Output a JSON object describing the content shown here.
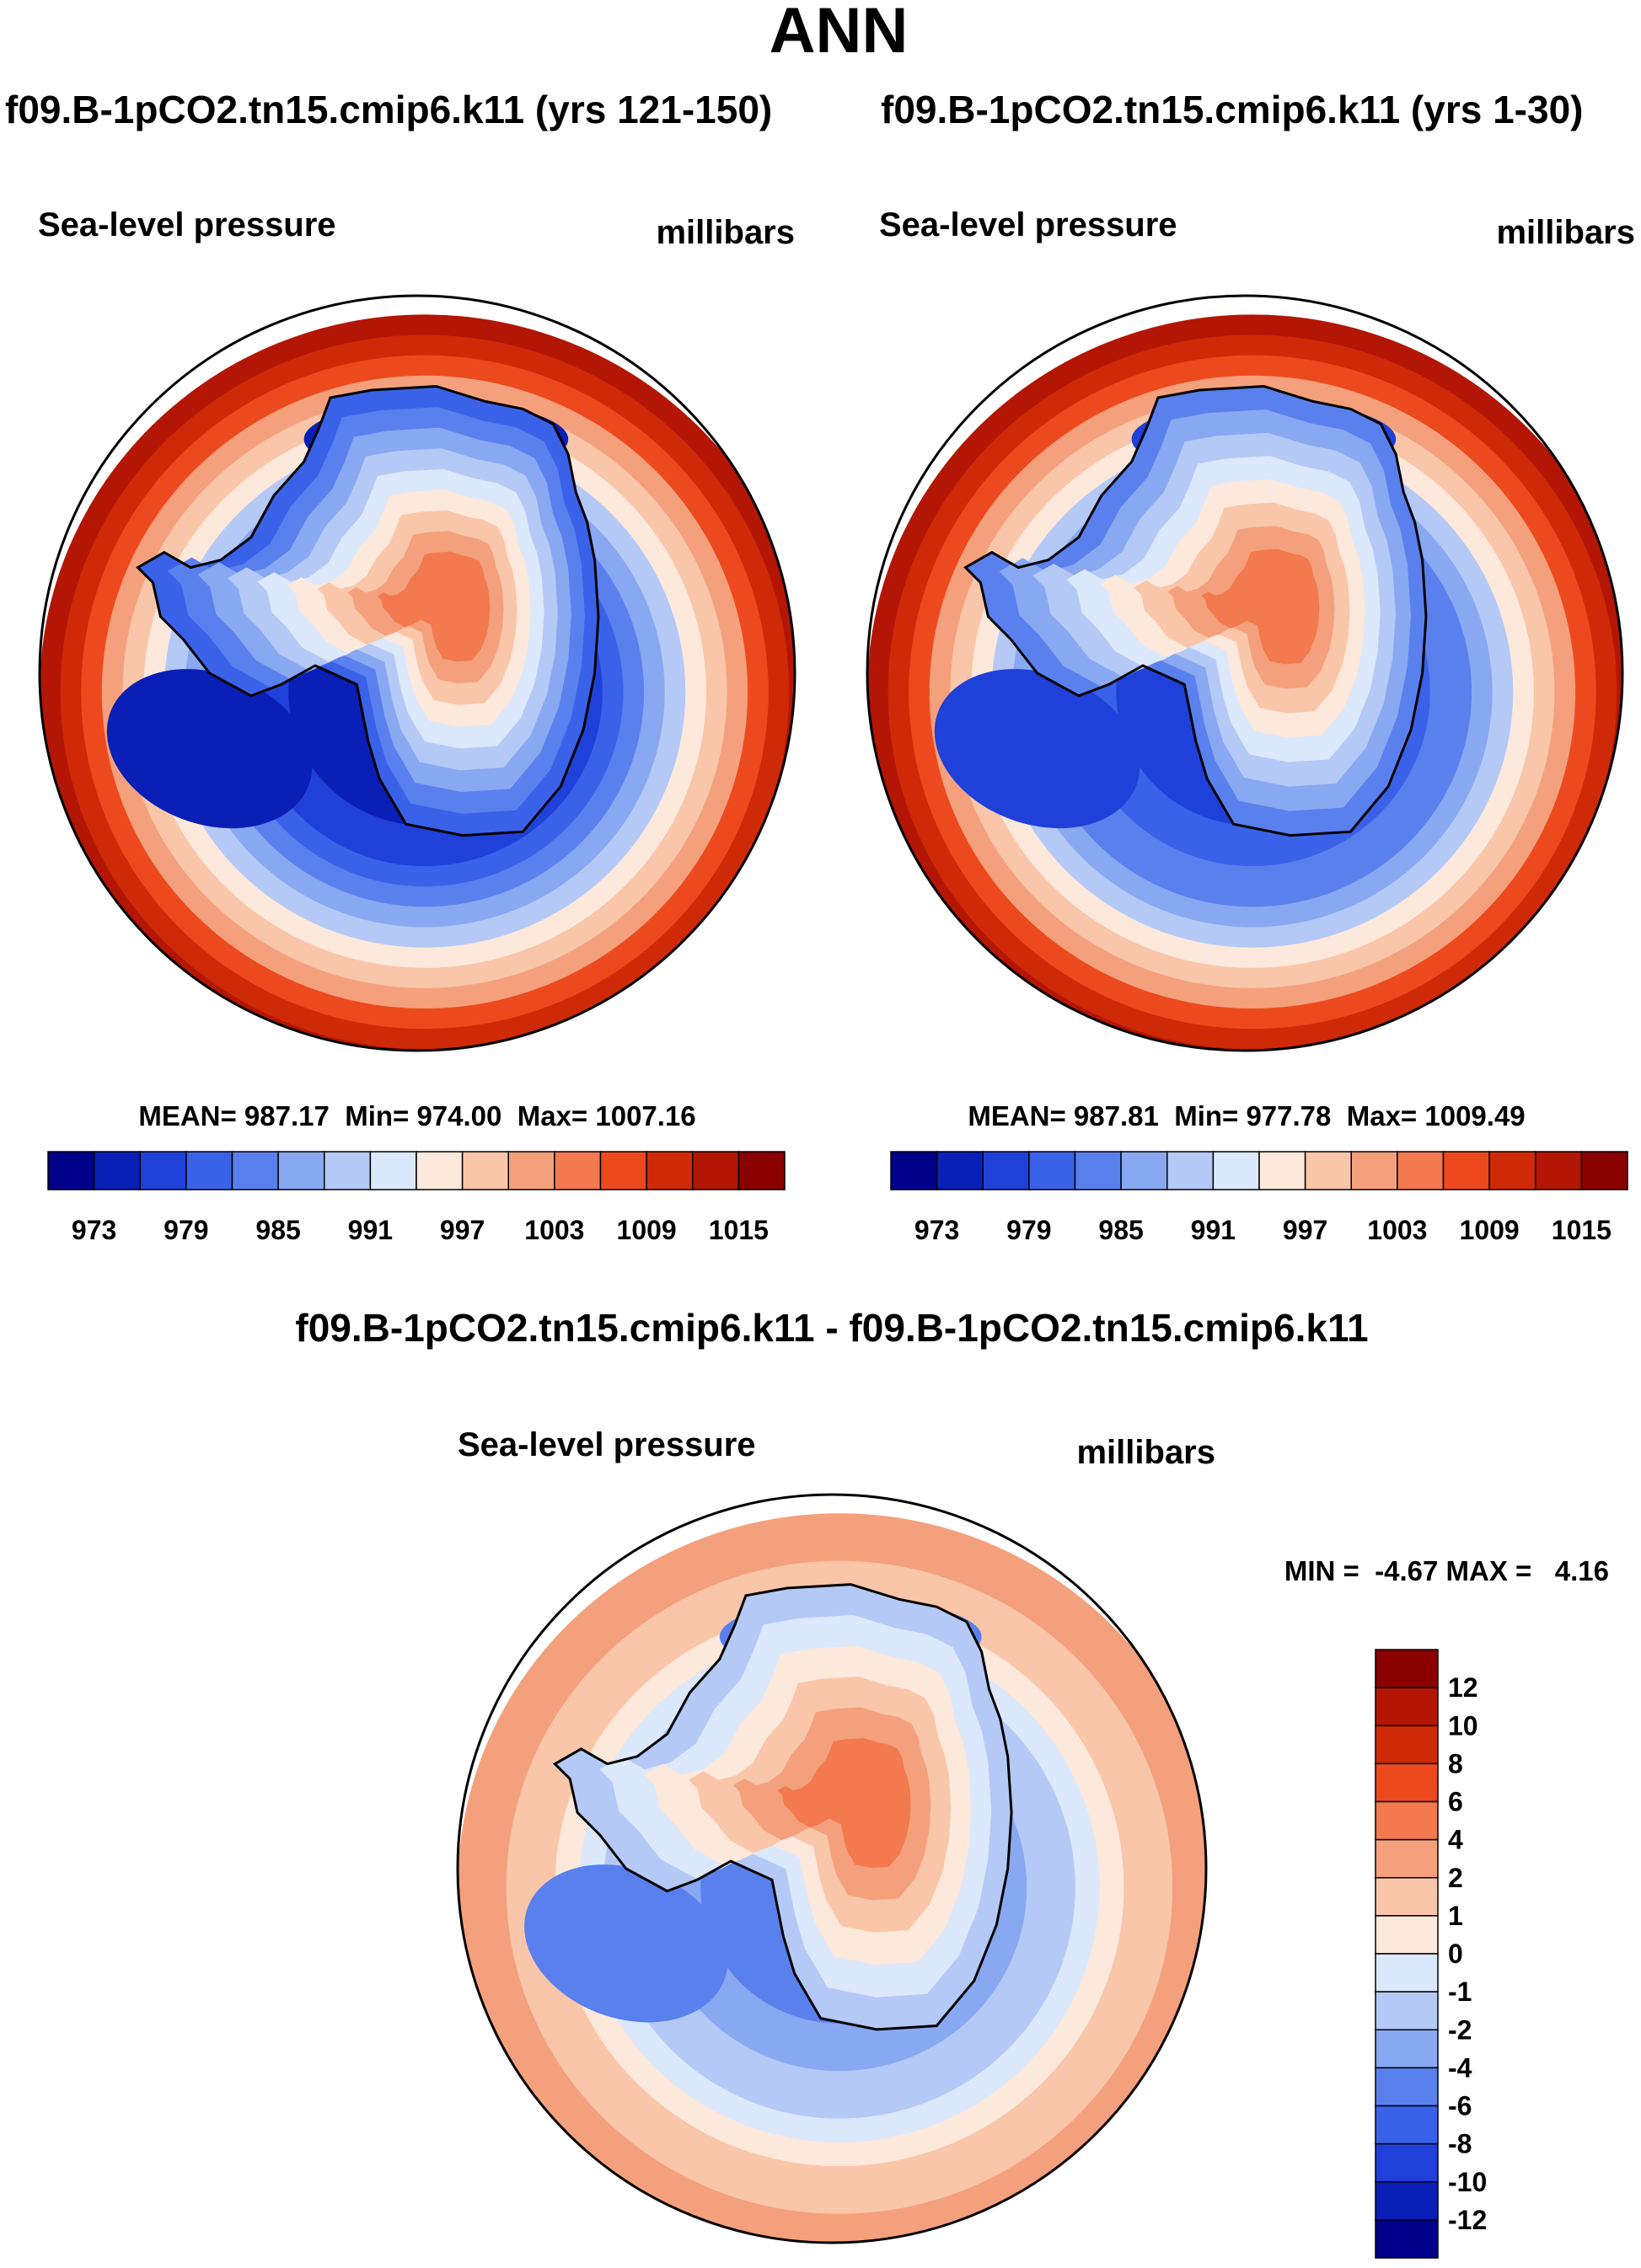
{
  "figure": {
    "season": "ANN",
    "diff_title": "f09.B-1pCO2.tn15.cmip6.k11 - f09.B-1pCO2.tn15.cmip6.k11"
  },
  "colors": {
    "abs_levels": [
      "#00008b",
      "#0a1fb5",
      "#1f40d9",
      "#3a62e8",
      "#5a80ee",
      "#89a8f2",
      "#b5c9f6",
      "#dce8fb",
      "#fde8dc",
      "#f9c6aa",
      "#f5a07c",
      "#f27a4e",
      "#ec4a1e",
      "#cf2a07",
      "#b31605",
      "#8b0000"
    ],
    "diff_levels": [
      "#00008b",
      "#0a1fb5",
      "#1f40d9",
      "#3a62e8",
      "#5a80ee",
      "#89a8f2",
      "#b5c9f6",
      "#dce8fb",
      "#fde8dc",
      "#f9c6aa",
      "#f5a07c",
      "#f27a4e",
      "#ec4a1e",
      "#cf2a07",
      "#b31605",
      "#8b0000"
    ],
    "coast": "#000000"
  },
  "panels": [
    {
      "id": "top-left",
      "case": "f09.B-1pCO2.tn15.cmip6.k11 (yrs 121-150)",
      "variable": "Sea-level pressure",
      "units": "millibars",
      "stats": "MEAN= 987.17  Min= 974.00  Max= 1007.16"
    },
    {
      "id": "top-right",
      "case": "f09.B-1pCO2.tn15.cmip6.k11 (yrs 1-30)",
      "variable": "Sea-level pressure",
      "units": "millibars",
      "stats": "MEAN= 987.81  Min= 977.78  Max= 1009.49"
    },
    {
      "id": "diff",
      "variable": "Sea-level pressure",
      "units": "millibars",
      "stats": "MIN =  -4.67 MAX =   4.16"
    }
  ],
  "chart_data": [
    {
      "type": "heatmap",
      "projection": "south polar stereographic",
      "title": "f09.B-1pCO2.tn15.cmip6.k11 (yrs 121-150)",
      "variable": "Sea-level pressure",
      "units": "millibars",
      "mean": 987.17,
      "min": 974.0,
      "max": 1007.16,
      "colorbar_ticks": [
        "973",
        "979",
        "985",
        "991",
        "997",
        "1003",
        "1009",
        "1015"
      ],
      "field_rings": [
        1,
        2,
        2,
        3,
        4,
        5,
        6,
        8,
        9,
        10,
        12,
        13,
        14
      ],
      "ocean_low_index": 1,
      "antarctic_rings": [
        3,
        4,
        5,
        6,
        7,
        8,
        9,
        10,
        11
      ]
    },
    {
      "type": "heatmap",
      "projection": "south polar stereographic",
      "title": "f09.B-1pCO2.tn15.cmip6.k11 (yrs 1-30)",
      "variable": "Sea-level pressure",
      "units": "millibars",
      "mean": 987.81,
      "min": 977.78,
      "max": 1009.49,
      "colorbar_ticks": [
        "973",
        "979",
        "985",
        "991",
        "997",
        "1003",
        "1009",
        "1015"
      ],
      "field_rings": [
        2,
        3,
        3,
        4,
        4,
        5,
        6,
        8,
        9,
        10,
        12,
        13,
        14
      ],
      "ocean_low_index": 2,
      "antarctic_rings": [
        4,
        5,
        6,
        7,
        8,
        9,
        10,
        11
      ]
    },
    {
      "type": "heatmap",
      "projection": "south polar stereographic",
      "title": "f09.B-1pCO2.tn15.cmip6.k11 - f09.B-1pCO2.tn15.cmip6.k11",
      "variable": "Sea-level pressure",
      "units": "millibars",
      "min": -4.67,
      "max": 4.16,
      "colorbar_ticks": [
        "12",
        "10",
        "8",
        "6",
        "4",
        "2",
        "1",
        "0",
        "-1",
        "-2",
        "-4",
        "-6",
        "-8",
        "-10",
        "-12"
      ],
      "field_rings": [
        4,
        5,
        5,
        6,
        6,
        7,
        8,
        9,
        9,
        10,
        10
      ],
      "ocean_low_index": 4,
      "antarctic_rings": [
        6,
        7,
        8,
        9,
        10,
        11
      ]
    }
  ]
}
